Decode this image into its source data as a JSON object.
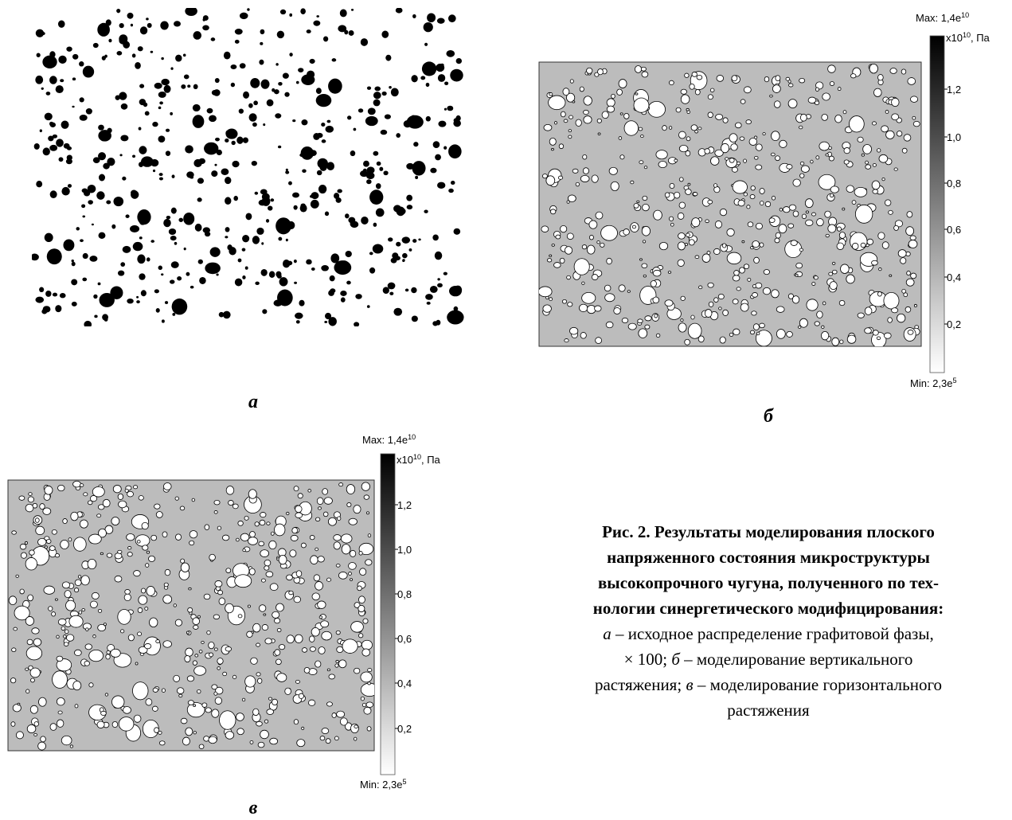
{
  "panels": [
    {
      "label": "а"
    },
    {
      "label": "б",
      "colorbar": {
        "max": {
          "text": "Max: 1,4e",
          "sup": "10"
        },
        "unit": {
          "text": "x10",
          "sup": "10",
          "tail": ", Па"
        },
        "ticks": [
          "1,2",
          "1,0",
          "0,8",
          "0,6",
          "0,4",
          "0,2"
        ],
        "min": {
          "text": "Min: 2,3e",
          "sup": "5"
        }
      }
    },
    {
      "label": "в",
      "colorbar": {
        "max": {
          "text": "Max: 1,4e",
          "sup": "10"
        },
        "unit": {
          "text": "x10",
          "sup": "10",
          "tail": ", Па"
        },
        "ticks": [
          "1,2",
          "1,0",
          "0,8",
          "0,6",
          "0,4",
          "0,2"
        ],
        "min": {
          "text": "Min: 2,3e",
          "sup": "5"
        }
      }
    }
  ],
  "caption": {
    "title_lines": [
      "Рис. 2. Результаты моделирования плоского",
      "напряженного состояния микроструктуры",
      "высокопрочного чугуна, полученного по тех-",
      "нологии синергетического модифицирования:"
    ],
    "lines": [
      [
        {
          "text": "а",
          "italic": true
        },
        {
          "text": " – исходное распределение графитовой фазы,"
        }
      ],
      [
        {
          "text": "× 100; "
        },
        {
          "text": "б",
          "italic": true
        },
        {
          "text": " – моделирование вертикального"
        }
      ],
      [
        {
          "text": "растяжения; "
        },
        {
          "text": "в",
          "italic": true
        },
        {
          "text": " – моделирование горизонтального"
        }
      ],
      [
        {
          "text": "растяжения"
        }
      ]
    ]
  }
}
